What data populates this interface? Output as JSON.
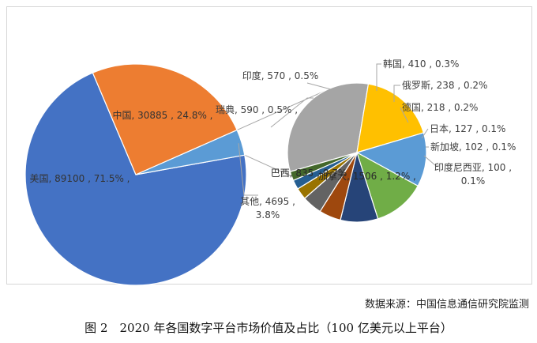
{
  "chart_data": {
    "type": "pie",
    "subtype": "pie-of-pie",
    "main_slices": [
      {
        "name": "美国",
        "value": 89100,
        "percent": "71.5%",
        "color": "#4472c4",
        "label": "美国, 89100 , 71.5%"
      },
      {
        "name": "中国",
        "value": 30885,
        "percent": "24.8%",
        "color": "#ed7d31",
        "label": "中国, 30885 , 24.8%"
      },
      {
        "name": "其他",
        "value": 4695,
        "percent": "3.8%",
        "color": "#5b9bd5",
        "label": "其他, 4695 , 3.8%"
      }
    ],
    "other_slices": [
      {
        "name": "加拿大",
        "value": 1506,
        "percent": "1.2%",
        "color": "#a5a5a5",
        "label": "加拿大, 1506 , 1.2%"
      },
      {
        "name": "巴西",
        "value": 835,
        "percent": "0.7%",
        "color": "#ffc000",
        "label": "巴西, 835 , 0.7%"
      },
      {
        "name": "瑞典",
        "value": 590,
        "percent": "0.5%",
        "color": "#5b9bd5",
        "label": "瑞典, 590 , 0.5%"
      },
      {
        "name": "印度",
        "value": 570,
        "percent": "0.5%",
        "color": "#70ad47",
        "label": "印度, 570 , 0.5%"
      },
      {
        "name": "韩国",
        "value": 410,
        "percent": "0.3%",
        "color": "#264478",
        "label": "韩国, 410 , 0.3%"
      },
      {
        "name": "俄罗斯",
        "value": 238,
        "percent": "0.2%",
        "color": "#9e480e",
        "label": "俄罗斯, 238 , 0.2%"
      },
      {
        "name": "德国",
        "value": 218,
        "percent": "0.2%",
        "color": "#636363",
        "label": "德国, 218 , 0.2%"
      },
      {
        "name": "日本",
        "value": 127,
        "percent": "0.1%",
        "color": "#997300",
        "label": "日本, 127 , 0.1%"
      },
      {
        "name": "新加坡",
        "value": 102,
        "percent": "0.1%",
        "color": "#255e91",
        "label": "新加坡, 102 , 0.1%"
      },
      {
        "name": "印度尼西亚",
        "value": 100,
        "percent": "0.1%",
        "color": "#43682b",
        "label": "印度尼西亚, 100 , 0.1%"
      }
    ]
  },
  "source": "数据来源：中国信息通信研究院监测",
  "caption": "图 2　2020 年各国数字平台市场价值及占比（100 亿美元以上平台）"
}
